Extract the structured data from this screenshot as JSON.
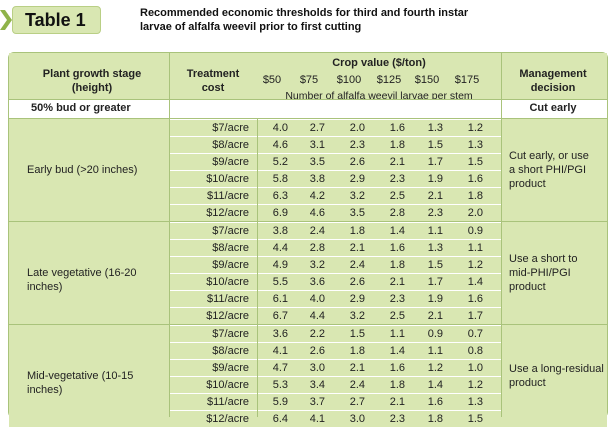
{
  "header": {
    "tag": "Table 1",
    "caption_line1": "Recommended economic thresholds for third and fourth instar",
    "caption_line2": "larvae of alfalfa weevil prior to first cutting"
  },
  "columns": {
    "stage_line1": "Plant growth stage",
    "stage_line2": "(height)",
    "cost_line1": "Treatment",
    "cost_line2": "cost",
    "crop_value": "Crop value ($/ton)",
    "prices": [
      "$50",
      "$75",
      "$100",
      "$125",
      "$150",
      "$175"
    ],
    "subheader": "Number of alfalfa weevil larvae per stem",
    "mgmt_line1": "Management",
    "mgmt_line2": "decision"
  },
  "section": {
    "label": "50% bud or greater",
    "decision": "Cut early"
  },
  "groups": [
    {
      "stage": "Early bud (>20 inches)",
      "decision_lines": [
        "Cut early, or use",
        "a short PHI/PGI",
        "product"
      ],
      "rows": [
        {
          "cost": "$7/acre",
          "v": [
            "4.0",
            "2.7",
            "2.0",
            "1.6",
            "1.3",
            "1.2"
          ]
        },
        {
          "cost": "$8/acre",
          "v": [
            "4.6",
            "3.1",
            "2.3",
            "1.8",
            "1.5",
            "1.3"
          ]
        },
        {
          "cost": "$9/acre",
          "v": [
            "5.2",
            "3.5",
            "2.6",
            "2.1",
            "1.7",
            "1.5"
          ]
        },
        {
          "cost": "$10/acre",
          "v": [
            "5.8",
            "3.8",
            "2.9",
            "2.3",
            "1.9",
            "1.6"
          ]
        },
        {
          "cost": "$11/acre",
          "v": [
            "6.3",
            "4.2",
            "3.2",
            "2.5",
            "2.1",
            "1.8"
          ]
        },
        {
          "cost": "$12/acre",
          "v": [
            "6.9",
            "4.6",
            "3.5",
            "2.8",
            "2.3",
            "2.0"
          ]
        }
      ]
    },
    {
      "stage": "Late vegetative (16-20 inches)",
      "decision_lines": [
        "Use a short to",
        "mid-PHI/PGI",
        "product"
      ],
      "rows": [
        {
          "cost": "$7/acre",
          "v": [
            "3.8",
            "2.4",
            "1.8",
            "1.4",
            "1.1",
            "0.9"
          ]
        },
        {
          "cost": "$8/acre",
          "v": [
            "4.4",
            "2.8",
            "2.1",
            "1.6",
            "1.3",
            "1.1"
          ]
        },
        {
          "cost": "$9/acre",
          "v": [
            "4.9",
            "3.2",
            "2.4",
            "1.8",
            "1.5",
            "1.2"
          ]
        },
        {
          "cost": "$10/acre",
          "v": [
            "5.5",
            "3.6",
            "2.6",
            "2.1",
            "1.7",
            "1.4"
          ]
        },
        {
          "cost": "$11/acre",
          "v": [
            "6.1",
            "4.0",
            "2.9",
            "2.3",
            "1.9",
            "1.6"
          ]
        },
        {
          "cost": "$12/acre",
          "v": [
            "6.7",
            "4.4",
            "3.2",
            "2.5",
            "2.1",
            "1.7"
          ]
        }
      ]
    },
    {
      "stage": "Mid-vegetative (10-15 inches)",
      "decision_lines": [
        "Use a long-residual",
        "product"
      ],
      "rows": [
        {
          "cost": "$7/acre",
          "v": [
            "3.6",
            "2.2",
            "1.5",
            "1.1",
            "0.9",
            "0.7"
          ]
        },
        {
          "cost": "$8/acre",
          "v": [
            "4.1",
            "2.6",
            "1.8",
            "1.4",
            "1.1",
            "0.8"
          ]
        },
        {
          "cost": "$9/acre",
          "v": [
            "4.7",
            "3.0",
            "2.1",
            "1.6",
            "1.2",
            "1.0"
          ]
        },
        {
          "cost": "$10/acre",
          "v": [
            "5.3",
            "3.4",
            "2.4",
            "1.8",
            "1.4",
            "1.2"
          ]
        },
        {
          "cost": "$11/acre",
          "v": [
            "5.9",
            "3.7",
            "2.7",
            "2.1",
            "1.6",
            "1.3"
          ]
        },
        {
          "cost": "$12/acre",
          "v": [
            "6.4",
            "4.1",
            "3.0",
            "2.3",
            "1.8",
            "1.5"
          ]
        }
      ]
    }
  ],
  "colors": {
    "green": "#d9e7b2",
    "border": "#a9c37b",
    "chevron": "#8fb34a"
  }
}
